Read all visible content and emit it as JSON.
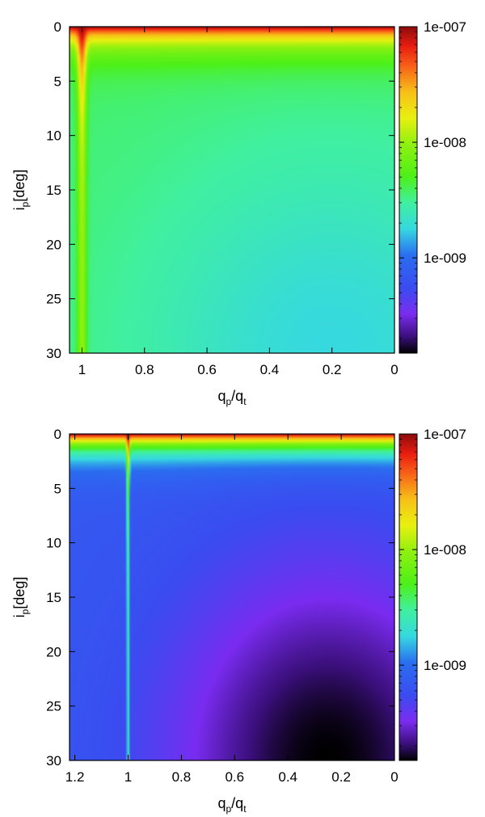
{
  "chart_data": [
    {
      "type": "heatmap",
      "title": "",
      "xlabel": {
        "base": "q",
        "sub": "p",
        "sep": "/",
        "base2": "q",
        "sub2": "t"
      },
      "ylabel": {
        "base": "i",
        "sub": "p",
        "rest": "[deg]"
      },
      "xlim": [
        1.04,
        0.0
      ],
      "ylim": [
        0,
        30
      ],
      "x_ticks": [
        {
          "value": 1,
          "label": "1"
        },
        {
          "value": 0.8,
          "label": "0.8"
        },
        {
          "value": 0.6,
          "label": "0.6"
        },
        {
          "value": 0.4,
          "label": "0.4"
        },
        {
          "value": 0.2,
          "label": "0.2"
        },
        {
          "value": 0,
          "label": "0"
        }
      ],
      "y_ticks": [
        {
          "value": 0,
          "label": "0"
        },
        {
          "value": 5,
          "label": "5"
        },
        {
          "value": 10,
          "label": "10"
        },
        {
          "value": 15,
          "label": "15"
        },
        {
          "value": 20,
          "label": "20"
        },
        {
          "value": 25,
          "label": "25"
        },
        {
          "value": 30,
          "label": "30"
        }
      ],
      "colorbar": {
        "scale": "log",
        "range": [
          1.5e-10,
          1e-07
        ],
        "ticks": [
          {
            "value": 1e-07,
            "label": "1e-007"
          },
          {
            "value": 1e-08,
            "label": "1e-008"
          },
          {
            "value": 1e-09,
            "label": "1e-009"
          }
        ]
      },
      "field": {
        "floor": 3.6e-09,
        "surface_peak": 1e-07,
        "surface_decay_deg": 1.6,
        "spike_x": 1.0,
        "spike_peak": 1e-07,
        "spike_width": 0.015,
        "spike_depth_deg": 5.0,
        "min_value": 1.8e-09,
        "min_x": 0.2,
        "min_y": 30
      }
    },
    {
      "type": "heatmap",
      "title": "",
      "xlabel": {
        "base": "q",
        "sub": "p",
        "sep": "/",
        "base2": "q",
        "sub2": "t"
      },
      "ylabel": {
        "base": "i",
        "sub": "p",
        "rest": "[deg]"
      },
      "xlim": [
        1.22,
        0.0
      ],
      "ylim": [
        0,
        30
      ],
      "x_ticks": [
        {
          "value": 1.2,
          "label": "1.2"
        },
        {
          "value": 1,
          "label": "1"
        },
        {
          "value": 0.8,
          "label": "0.8"
        },
        {
          "value": 0.6,
          "label": "0.6"
        },
        {
          "value": 0.4,
          "label": "0.4"
        },
        {
          "value": 0.2,
          "label": "0.2"
        },
        {
          "value": 0,
          "label": "0"
        }
      ],
      "y_ticks": [
        {
          "value": 0,
          "label": "0"
        },
        {
          "value": 5,
          "label": "5"
        },
        {
          "value": 10,
          "label": "10"
        },
        {
          "value": 15,
          "label": "15"
        },
        {
          "value": 20,
          "label": "20"
        },
        {
          "value": 25,
          "label": "25"
        },
        {
          "value": 30,
          "label": "30"
        }
      ],
      "colorbar": {
        "scale": "log",
        "range": [
          1.5e-10,
          1e-07
        ],
        "ticks": [
          {
            "value": 1e-07,
            "label": "1e-007"
          },
          {
            "value": 1e-08,
            "label": "1e-008"
          },
          {
            "value": 1e-09,
            "label": "1e-009"
          }
        ]
      },
      "field": {
        "floor": 7e-10,
        "surface_peak": 1e-07,
        "surface_decay_deg": 1.4,
        "spike_x": 1.0,
        "spike_peak": 1e-07,
        "spike_width": 0.006,
        "spike_depth_deg": 3.0,
        "min_value": 1.5e-10,
        "min_x": 0.25,
        "min_y": 30
      }
    }
  ]
}
